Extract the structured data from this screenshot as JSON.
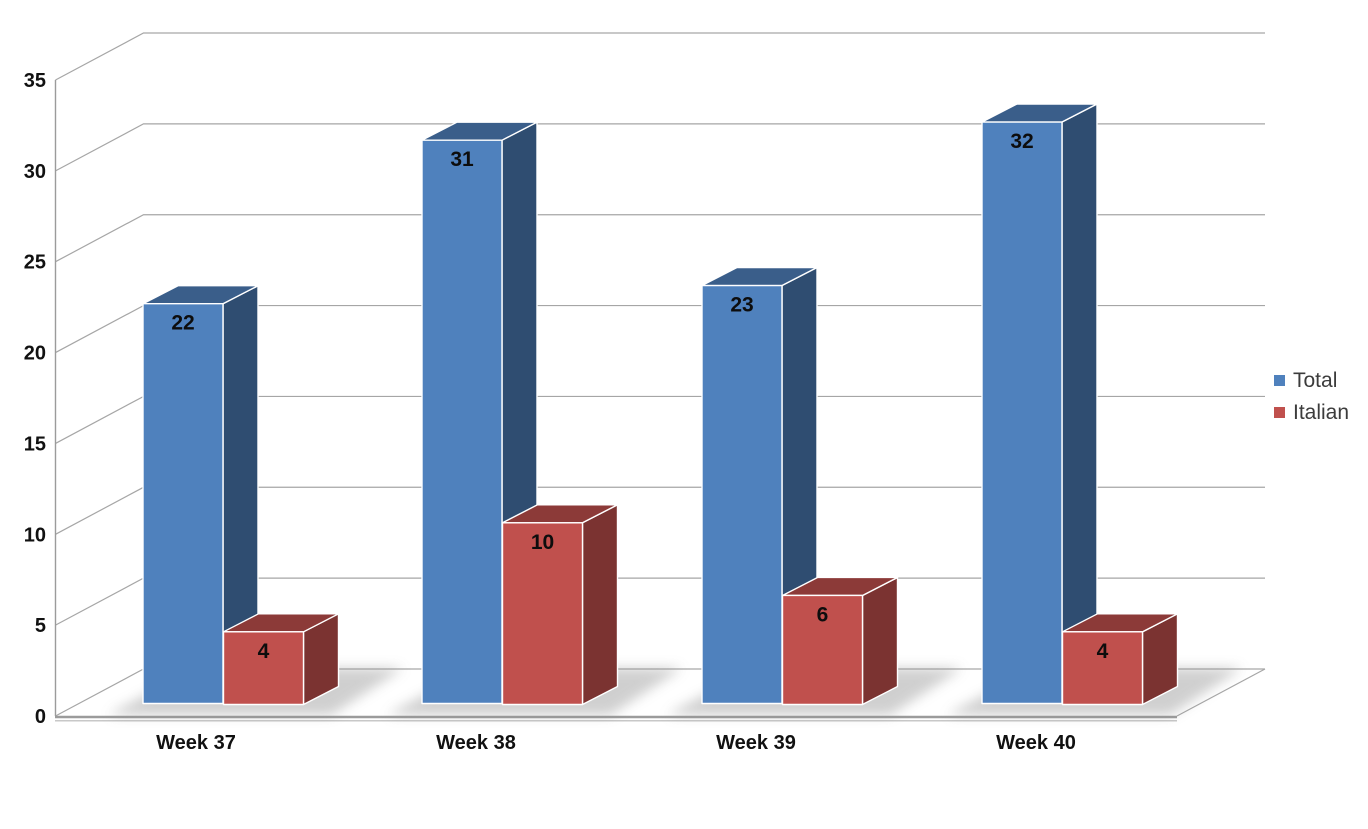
{
  "chart_data": {
    "type": "bar",
    "style": "3d-clustered-column",
    "title": "",
    "xlabel": "",
    "ylabel": "",
    "categories": [
      "Week 37",
      "Week 38",
      "Week 39",
      "Week 40"
    ],
    "series": [
      {
        "name": "Total",
        "values": [
          22,
          31,
          23,
          32
        ],
        "color": "#4F81BD",
        "top_color": "#3A5E8A",
        "side_color": "#2F4D71"
      },
      {
        "name": "Italian",
        "values": [
          4,
          10,
          6,
          4
        ],
        "color": "#C0504D",
        "top_color": "#8C3A38",
        "side_color": "#7B3331"
      }
    ],
    "data_labels": true,
    "ylim": [
      0,
      35
    ],
    "ytick_step": 5,
    "yticks": [
      0,
      5,
      10,
      15,
      20,
      25,
      30,
      35
    ],
    "grid": true,
    "legend_position": "right"
  },
  "colors": {
    "background": "#FFFFFF",
    "gridline": "#A6A6A6",
    "axis_line": "#9B9B9B",
    "floor_edge": "#9B9B9B",
    "floor_edge_shadow": "#B5B5B5",
    "tick_text": "#111111",
    "legend_text": "#3C3C3C",
    "bar_edge": "#FFFFFF",
    "shadow": "#8F8F8F"
  }
}
